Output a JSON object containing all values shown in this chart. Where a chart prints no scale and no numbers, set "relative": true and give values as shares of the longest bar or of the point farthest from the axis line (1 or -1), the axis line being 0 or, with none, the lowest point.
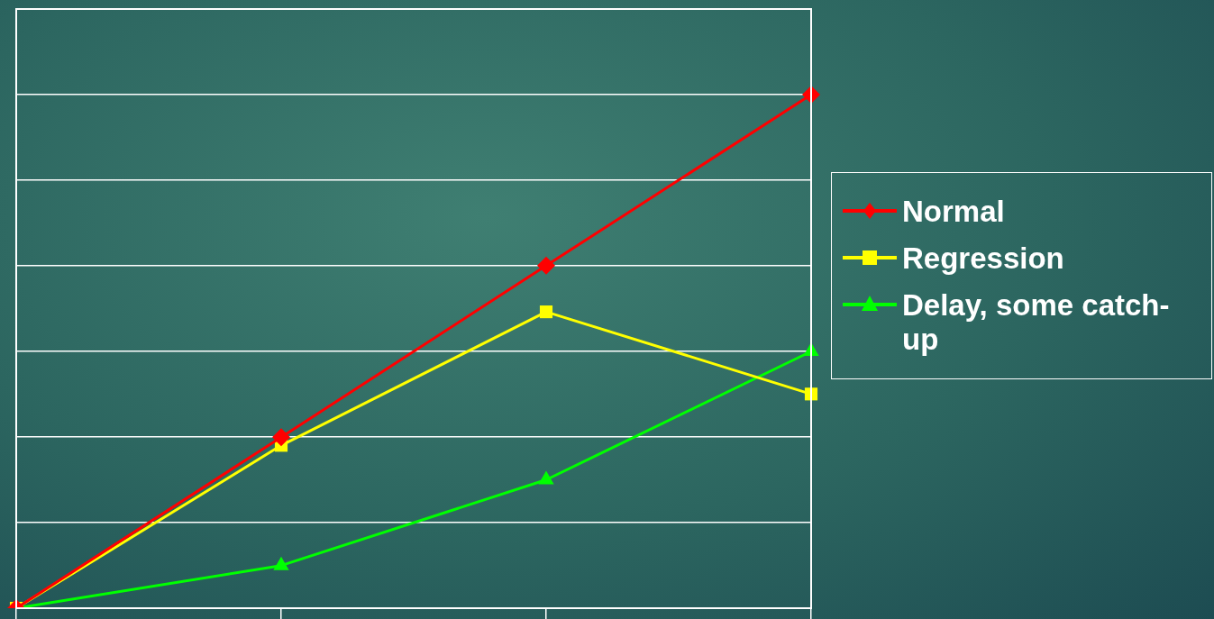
{
  "chart_data": {
    "type": "line",
    "relative": true,
    "categories": [
      null,
      null,
      null,
      null
    ],
    "series": [
      {
        "name": "Normal",
        "color": "#ff0000",
        "marker": "diamond",
        "values": [
          0,
          0.333,
          0.667,
          1
        ]
      },
      {
        "name": "Regression",
        "color": "#ffff00",
        "marker": "square",
        "values": [
          0,
          0.317,
          0.577,
          0.417
        ]
      },
      {
        "name": "Delay, some catch-up",
        "color": "#00ff00",
        "marker": "triangle",
        "values": [
          0,
          0.083,
          0.25,
          0.5
        ]
      }
    ],
    "grid": "y",
    "legend": "right",
    "tick_labels": false,
    "line_style": "solid"
  }
}
